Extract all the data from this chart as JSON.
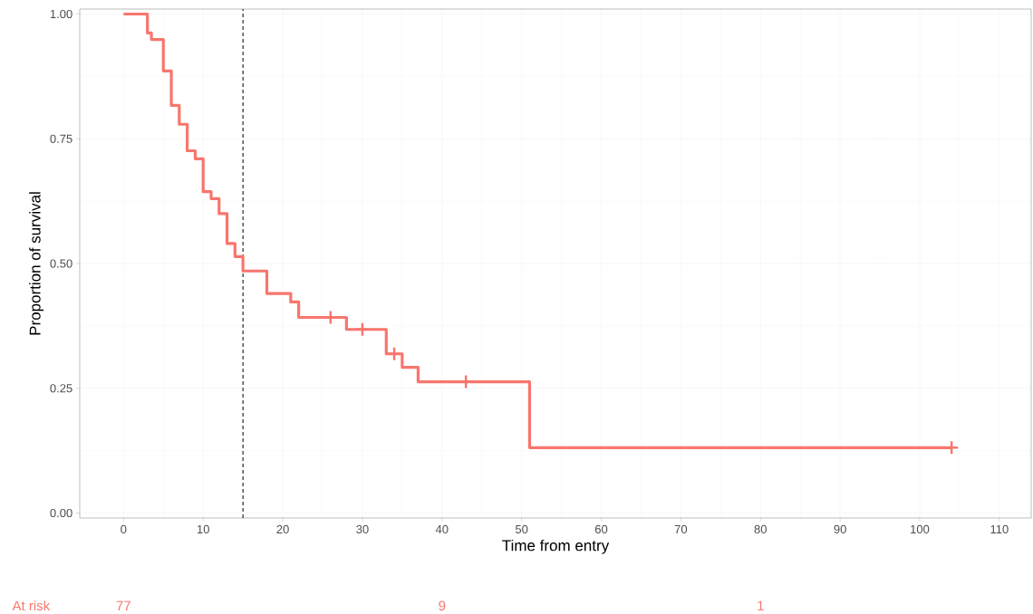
{
  "chart_data": {
    "type": "step",
    "xlabel": "Time from entry",
    "ylabel": "Proportion of survival",
    "xlim": [
      -5.5,
      114
    ],
    "ylim": [
      -0.01,
      1.01
    ],
    "xticks": [
      0,
      10,
      20,
      30,
      40,
      50,
      60,
      70,
      80,
      90,
      100,
      110
    ],
    "yticks": [
      {
        "value": 0,
        "label": "0.00"
      },
      {
        "value": 0.25,
        "label": "0.25"
      },
      {
        "value": 0.5,
        "label": "0.50"
      },
      {
        "value": 0.75,
        "label": "0.75"
      },
      {
        "value": 1,
        "label": "1.00"
      }
    ],
    "grid": true,
    "series": [
      {
        "color": "#f8766d",
        "x": [
          0,
          3,
          3.5,
          5,
          6,
          7,
          8,
          9,
          10,
          11,
          12,
          13,
          14,
          15,
          18,
          21,
          22,
          28,
          33,
          35,
          37,
          51,
          104
        ],
        "values": [
          1,
          0.962,
          0.949,
          0.886,
          0.817,
          0.779,
          0.726,
          0.71,
          0.644,
          0.63,
          0.6,
          0.54,
          0.514,
          0.485,
          0.44,
          0.423,
          0.392,
          0.368,
          0.319,
          0.292,
          0.263,
          0.131,
          0.131
        ]
      },
      {
        "type": "scatter",
        "marker": "cross",
        "color": "#f8766d",
        "x": [
          26,
          30,
          34,
          43,
          104
        ],
        "values": [
          0.392,
          0.368,
          0.319,
          0.263,
          0.131
        ]
      }
    ],
    "ref_lines": [
      {
        "axis": "x",
        "value": 15,
        "color": "#000000",
        "line_style": "dashed"
      }
    ],
    "annotations": [
      "At risk",
      "77",
      "9",
      "1"
    ]
  }
}
